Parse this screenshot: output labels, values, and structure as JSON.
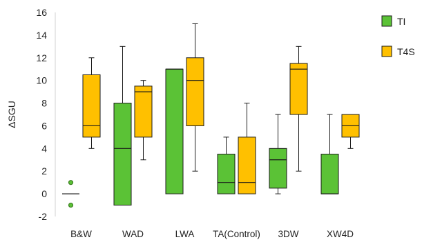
{
  "chart_data": {
    "type": "box",
    "ylabel": "ΔSGU",
    "ylim": [
      -2,
      16
    ],
    "yticks": [
      -2,
      0,
      2,
      4,
      6,
      8,
      10,
      12,
      14,
      16
    ],
    "categories": [
      "B&W",
      "WAD",
      "LWA",
      "TA(Control)",
      "3DW",
      "XW4D"
    ],
    "grid": false,
    "legend_position": "top-right",
    "series": [
      {
        "name": "TI",
        "color": "#5BC236",
        "boxes": [
          {
            "min": null,
            "q1": null,
            "median": 0,
            "q3": null,
            "max": null,
            "outliers": [
              1,
              -1
            ]
          },
          {
            "min": -1,
            "q1": -1,
            "median": 4,
            "q3": 8,
            "max": 13,
            "outliers": []
          },
          {
            "min": 0,
            "q1": 0,
            "median": 11,
            "q3": 11,
            "max": 11,
            "outliers": []
          },
          {
            "min": 0,
            "q1": 0,
            "median": 1,
            "q3": 3.5,
            "max": 5,
            "outliers": []
          },
          {
            "min": 0,
            "q1": 0.5,
            "median": 3,
            "q3": 4,
            "max": 7,
            "outliers": []
          },
          {
            "min": 0,
            "q1": 0,
            "median": 0,
            "q3": 3.5,
            "max": 7,
            "outliers": []
          }
        ]
      },
      {
        "name": "T4S",
        "color": "#FFC000",
        "boxes": [
          {
            "min": 4,
            "q1": 5,
            "median": 6,
            "q3": 10.5,
            "max": 12,
            "outliers": []
          },
          {
            "min": 3,
            "q1": 5,
            "median": 9,
            "q3": 9.5,
            "max": 10,
            "outliers": []
          },
          {
            "min": 2,
            "q1": 6,
            "median": 10,
            "q3": 12,
            "max": 15,
            "outliers": []
          },
          {
            "min": 0,
            "q1": 0,
            "median": 1,
            "q3": 5,
            "max": 8,
            "outliers": []
          },
          {
            "min": 2,
            "q1": 7,
            "median": 11,
            "q3": 11.5,
            "max": 13,
            "outliers": []
          },
          {
            "min": 4,
            "q1": 5,
            "median": 6,
            "q3": 7,
            "max": 7,
            "outliers": []
          }
        ]
      }
    ]
  }
}
